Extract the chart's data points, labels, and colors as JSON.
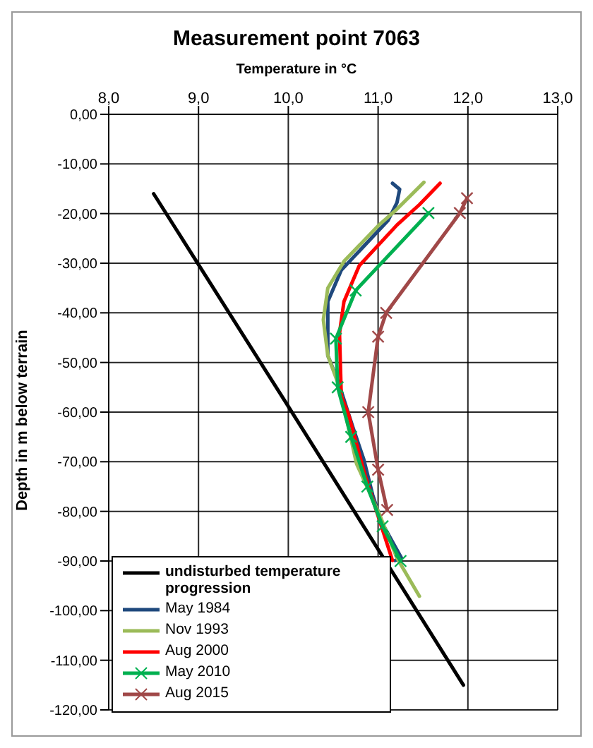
{
  "chart_data": {
    "type": "line",
    "title": "Measurement point 7063",
    "xlabel": "Temperature  in °C",
    "ylabel": "Depth in m  below terrain",
    "xlim": [
      8,
      13
    ],
    "xticks": [
      {
        "value": 8,
        "label": "8,0"
      },
      {
        "value": 9,
        "label": "9,0"
      },
      {
        "value": 10,
        "label": "10,0"
      },
      {
        "value": 11,
        "label": "11,0"
      },
      {
        "value": 12,
        "label": "12,0"
      },
      {
        "value": 13,
        "label": "13,0"
      }
    ],
    "ylim": [
      -120,
      0
    ],
    "yticks": [
      {
        "value": 0,
        "label": "0,00"
      },
      {
        "value": -10,
        "label": "-10,00"
      },
      {
        "value": -20,
        "label": "-20,00"
      },
      {
        "value": -30,
        "label": "-30,00"
      },
      {
        "value": -40,
        "label": "-40,00"
      },
      {
        "value": -50,
        "label": "-50,00"
      },
      {
        "value": -60,
        "label": "-60,00"
      },
      {
        "value": -70,
        "label": "-70,00"
      },
      {
        "value": -80,
        "label": "-80,00"
      },
      {
        "value": -90,
        "label": "-90,00"
      },
      {
        "value": -100,
        "label": "-100,00"
      },
      {
        "value": -110,
        "label": "-110,00"
      },
      {
        "value": -120,
        "label": "-120,00"
      }
    ],
    "grid": true,
    "legend": "bottom left",
    "marker": "none",
    "line_style": "solid",
    "series": [
      {
        "name": "undisturbed temperature progression",
        "color": "#000000",
        "x": [
          8.5,
          9.97,
          11.95
        ],
        "values": [
          -16,
          -58,
          -115
        ]
      },
      {
        "name": "May 1984",
        "color": "#1f497d",
        "x": [
          11.16,
          11.24,
          11.21,
          11.11,
          10.59,
          10.44,
          10.44,
          10.56,
          10.72,
          10.84,
          10.94,
          11.04,
          11.26,
          11.19
        ],
        "values": [
          -13.9,
          -15.1,
          -17.8,
          -21.4,
          -31.4,
          -37.7,
          -48.6,
          -54.1,
          -63.1,
          -69.5,
          -76.7,
          -82.2,
          -89.4,
          -89.9
        ]
      },
      {
        "name": "Nov 1993",
        "color": "#9bbb59",
        "x": [
          11.51,
          11.21,
          11.01,
          10.62,
          10.44,
          10.39,
          10.44,
          10.57,
          10.76,
          11.01,
          11.21,
          11.46
        ],
        "values": [
          -13.7,
          -19.1,
          -22.3,
          -29.6,
          -35,
          -41.4,
          -48.6,
          -55,
          -70.4,
          -80.4,
          -89.4,
          -97.1
        ]
      },
      {
        "name": "Aug 2000",
        "color": "#ff0000",
        "x": [
          11.69,
          11.46,
          11.21,
          10.79,
          10.62,
          10.57,
          10.59,
          10.67,
          10.86,
          11.16
        ],
        "values": [
          -13.9,
          -18.2,
          -22.3,
          -30.5,
          -37.7,
          -44.1,
          -56.8,
          -60.4,
          -73.1,
          -89.9
        ]
      },
      {
        "name": "May 2010",
        "color": "#00b050",
        "marker": "cross",
        "x": [
          11.56,
          10.75,
          10.53,
          10.55,
          10.7,
          10.88,
          11.05,
          11.25
        ],
        "values": [
          -19.9,
          -35.5,
          -45.2,
          -55,
          -65,
          -75,
          -83,
          -90
        ]
      },
      {
        "name": "Aug 2015",
        "color": "#a04848",
        "marker": "cross",
        "x": [
          11.99,
          11.91,
          11.09,
          11.0,
          10.89,
          11.0,
          11.1
        ],
        "values": [
          -16.9,
          -19.9,
          -40,
          -44.8,
          -60,
          -71.6,
          -79.7
        ]
      }
    ]
  }
}
